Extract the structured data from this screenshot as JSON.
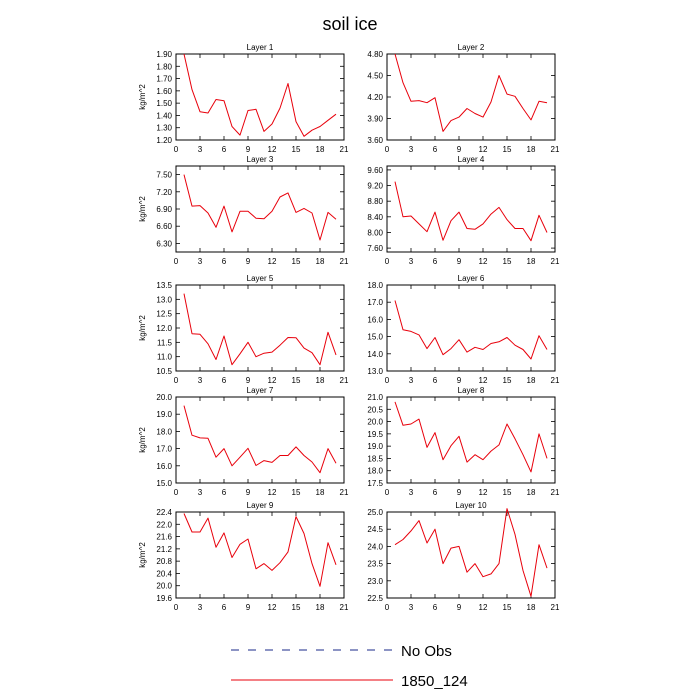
{
  "figure": {
    "title": "soil ice",
    "legend": [
      {
        "label": "No Obs",
        "color": "#1a2a8a",
        "dash": true
      },
      {
        "label": "1850_124",
        "color": "#e8000b",
        "dash": false
      }
    ]
  },
  "chart_data": [
    {
      "type": "line",
      "title": "Layer 1",
      "ylabel": "kg/m^2",
      "xlim": [
        0,
        21
      ],
      "ylim": [
        1.2,
        1.9
      ],
      "xticks": [
        0,
        3,
        6,
        9,
        12,
        15,
        18,
        21
      ],
      "yticks": [
        "1.20",
        "1.30",
        "1.40",
        "1.50",
        "1.60",
        "1.70",
        "1.80",
        "1.90"
      ],
      "series": [
        {
          "color": "#e8000b",
          "x": [
            1,
            2,
            3,
            4,
            5,
            6,
            7,
            8,
            9,
            10,
            11,
            12,
            13,
            14,
            15,
            16,
            17,
            18,
            19,
            20
          ],
          "y": [
            1.9,
            1.61,
            1.43,
            1.42,
            1.53,
            1.52,
            1.31,
            1.24,
            1.44,
            1.45,
            1.27,
            1.33,
            1.46,
            1.66,
            1.35,
            1.23,
            1.28,
            1.31,
            1.36,
            1.41
          ]
        }
      ]
    },
    {
      "type": "line",
      "title": "Layer 2",
      "ylabel": "",
      "xlim": [
        0,
        21
      ],
      "ylim": [
        3.6,
        4.8
      ],
      "xticks": [
        0,
        3,
        6,
        9,
        12,
        15,
        18,
        21
      ],
      "yticks": [
        "3.60",
        "3.90",
        "4.20",
        "4.50",
        "4.80"
      ],
      "series": [
        {
          "color": "#e8000b",
          "x": [
            1,
            2,
            3,
            4,
            5,
            6,
            7,
            8,
            9,
            10,
            11,
            12,
            13,
            14,
            15,
            16,
            17,
            18,
            19,
            20
          ],
          "y": [
            4.8,
            4.4,
            4.14,
            4.15,
            4.12,
            4.19,
            3.72,
            3.87,
            3.92,
            4.04,
            3.97,
            3.92,
            4.13,
            4.5,
            4.24,
            4.21,
            4.04,
            3.88,
            4.14,
            4.12
          ]
        }
      ]
    },
    {
      "type": "line",
      "title": "Layer 3",
      "ylabel": "kg/m^2",
      "xlim": [
        0,
        21
      ],
      "ylim": [
        6.15,
        7.65
      ],
      "xticks": [
        0,
        3,
        6,
        9,
        12,
        15,
        18,
        21
      ],
      "yticks": [
        "6.30",
        "6.60",
        "6.90",
        "7.20",
        "7.50"
      ],
      "series": [
        {
          "color": "#e8000b",
          "x": [
            1,
            2,
            3,
            4,
            5,
            6,
            7,
            8,
            9,
            10,
            11,
            12,
            13,
            14,
            15,
            16,
            17,
            18,
            19,
            20
          ],
          "y": [
            7.5,
            6.95,
            6.96,
            6.83,
            6.58,
            6.95,
            6.5,
            6.86,
            6.86,
            6.74,
            6.73,
            6.86,
            7.11,
            7.18,
            6.84,
            6.91,
            6.83,
            6.36,
            6.84,
            6.72
          ]
        }
      ]
    },
    {
      "type": "line",
      "title": "Layer 4",
      "ylabel": "",
      "xlim": [
        0,
        21
      ],
      "ylim": [
        7.5,
        9.7
      ],
      "xticks": [
        0,
        3,
        6,
        9,
        12,
        15,
        18,
        21
      ],
      "yticks": [
        "7.60",
        "8.00",
        "8.40",
        "8.80",
        "9.20",
        "9.60"
      ],
      "series": [
        {
          "color": "#e8000b",
          "x": [
            1,
            2,
            3,
            4,
            5,
            6,
            7,
            8,
            9,
            10,
            11,
            12,
            13,
            14,
            15,
            16,
            17,
            18,
            19,
            20
          ],
          "y": [
            9.3,
            8.4,
            8.42,
            8.22,
            8.02,
            8.52,
            7.8,
            8.3,
            8.52,
            8.1,
            8.08,
            8.22,
            8.47,
            8.64,
            8.33,
            8.1,
            8.1,
            7.79,
            8.44,
            8.0
          ]
        }
      ]
    },
    {
      "type": "line",
      "title": "Layer 5",
      "ylabel": "kg/m^2",
      "xlim": [
        0,
        21
      ],
      "ylim": [
        10.5,
        13.5
      ],
      "xticks": [
        0,
        3,
        6,
        9,
        12,
        15,
        18,
        21
      ],
      "yticks": [
        "10.5",
        "11.0",
        "11.5",
        "12.0",
        "12.5",
        "13.0",
        "13.5"
      ],
      "series": [
        {
          "color": "#e8000b",
          "x": [
            1,
            2,
            3,
            4,
            5,
            6,
            7,
            8,
            9,
            10,
            11,
            12,
            13,
            14,
            15,
            16,
            17,
            18,
            19,
            20
          ],
          "y": [
            13.2,
            11.8,
            11.78,
            11.45,
            10.9,
            11.72,
            10.72,
            11.1,
            11.5,
            11.0,
            11.12,
            11.16,
            11.4,
            11.67,
            11.66,
            11.3,
            11.14,
            10.72,
            11.85,
            11.06
          ]
        }
      ]
    },
    {
      "type": "line",
      "title": "Layer 6",
      "ylabel": "",
      "xlim": [
        0,
        21
      ],
      "ylim": [
        13,
        18
      ],
      "xticks": [
        0,
        3,
        6,
        9,
        12,
        15,
        18,
        21
      ],
      "yticks": [
        "13.0",
        "14.0",
        "15.0",
        "16.0",
        "17.0",
        "18.0"
      ],
      "series": [
        {
          "color": "#e8000b",
          "x": [
            1,
            2,
            3,
            4,
            5,
            6,
            7,
            8,
            9,
            10,
            11,
            12,
            13,
            14,
            15,
            16,
            17,
            18,
            19,
            20
          ],
          "y": [
            17.1,
            15.4,
            15.3,
            15.1,
            14.3,
            14.95,
            13.95,
            14.3,
            14.82,
            14.1,
            14.38,
            14.25,
            14.6,
            14.7,
            14.95,
            14.5,
            14.25,
            13.7,
            15.05,
            14.25
          ]
        }
      ]
    },
    {
      "type": "line",
      "title": "Layer 7",
      "ylabel": "kg/m^2",
      "xlim": [
        0,
        21
      ],
      "ylim": [
        15,
        20
      ],
      "xticks": [
        0,
        3,
        6,
        9,
        12,
        15,
        18,
        21
      ],
      "yticks": [
        "15.0",
        "16.0",
        "17.0",
        "18.0",
        "19.0",
        "20.0"
      ],
      "series": [
        {
          "color": "#e8000b",
          "x": [
            1,
            2,
            3,
            4,
            5,
            6,
            7,
            8,
            9,
            10,
            11,
            12,
            13,
            14,
            15,
            16,
            17,
            18,
            19,
            20
          ],
          "y": [
            19.5,
            17.78,
            17.62,
            17.6,
            16.5,
            17.0,
            16.0,
            16.5,
            17.02,
            16.02,
            16.3,
            16.2,
            16.6,
            16.6,
            17.1,
            16.6,
            16.22,
            15.6,
            17.0,
            16.15
          ]
        }
      ]
    },
    {
      "type": "line",
      "title": "Layer 8",
      "ylabel": "",
      "xlim": [
        0,
        21
      ],
      "ylim": [
        17.5,
        21
      ],
      "xticks": [
        0,
        3,
        6,
        9,
        12,
        15,
        18,
        21
      ],
      "yticks": [
        "17.5",
        "18.0",
        "18.5",
        "19.0",
        "19.5",
        "20.0",
        "20.5",
        "21.0"
      ],
      "series": [
        {
          "color": "#e8000b",
          "x": [
            1,
            2,
            3,
            4,
            5,
            6,
            7,
            8,
            9,
            10,
            11,
            12,
            13,
            14,
            15,
            16,
            17,
            18,
            19,
            20
          ],
          "y": [
            20.8,
            19.85,
            19.9,
            20.1,
            18.95,
            19.55,
            18.45,
            19.02,
            19.4,
            18.35,
            18.65,
            18.45,
            18.8,
            19.05,
            19.9,
            19.3,
            18.65,
            17.95,
            19.5,
            18.5
          ]
        }
      ]
    },
    {
      "type": "line",
      "title": "Layer 9",
      "ylabel": "kg/m^2",
      "xlim": [
        0,
        21
      ],
      "ylim": [
        19.6,
        22.4
      ],
      "xticks": [
        0,
        3,
        6,
        9,
        12,
        15,
        18,
        21
      ],
      "yticks": [
        "19.6",
        "20.0",
        "20.4",
        "20.8",
        "21.2",
        "21.6",
        "22.0",
        "22.4"
      ],
      "series": [
        {
          "color": "#e8000b",
          "x": [
            1,
            2,
            3,
            4,
            5,
            6,
            7,
            8,
            9,
            10,
            11,
            12,
            13,
            14,
            15,
            16,
            17,
            18,
            19,
            20
          ],
          "y": [
            22.35,
            21.75,
            21.75,
            22.2,
            21.25,
            21.72,
            20.92,
            21.35,
            21.52,
            20.55,
            20.72,
            20.5,
            20.75,
            21.1,
            22.25,
            21.7,
            20.72,
            19.98,
            21.4,
            20.68
          ]
        }
      ]
    },
    {
      "type": "line",
      "title": "Layer 10",
      "ylabel": "",
      "xlim": [
        0,
        21
      ],
      "ylim": [
        22.5,
        25.0
      ],
      "xticks": [
        0,
        3,
        6,
        9,
        12,
        15,
        18,
        21
      ],
      "yticks": [
        "22.5",
        "23.0",
        "23.5",
        "24.0",
        "24.5",
        "25.0"
      ],
      "series": [
        {
          "color": "#e8000b",
          "x": [
            1,
            2,
            3,
            4,
            5,
            6,
            7,
            8,
            9,
            10,
            11,
            12,
            13,
            14,
            15,
            16,
            17,
            18,
            19,
            20
          ],
          "y": [
            24.05,
            24.2,
            24.45,
            24.75,
            24.1,
            24.5,
            23.5,
            23.95,
            24.0,
            23.25,
            23.5,
            23.12,
            23.2,
            23.5,
            25.1,
            24.35,
            23.3,
            22.55,
            24.05,
            23.37
          ]
        }
      ]
    }
  ]
}
